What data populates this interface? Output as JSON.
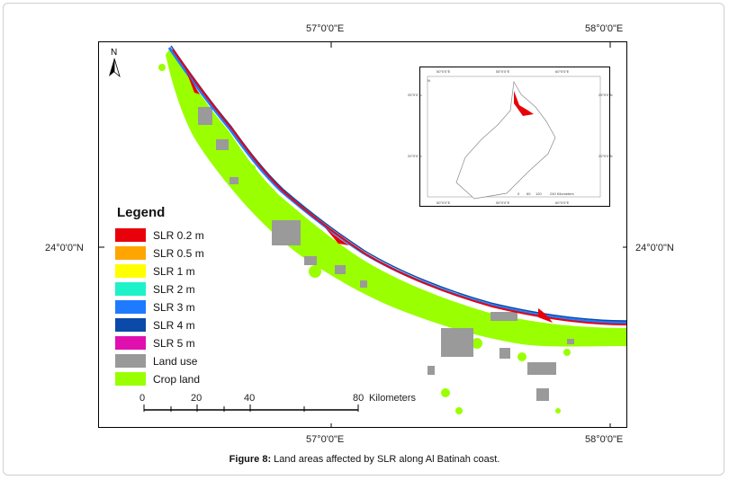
{
  "map": {
    "lon_labels": {
      "top_left": "57°0'0\"E",
      "top_right": "58°0'0\"E",
      "bottom_left": "57°0'0\"E",
      "bottom_right": "58°0'0\"E"
    },
    "lat_labels": {
      "left": "24°0'0\"N",
      "right": "24°0'0\"N"
    },
    "north_arrow": "N"
  },
  "legend": {
    "title": "Legend",
    "items": [
      {
        "label": "SLR 0.2 m",
        "color": "#e8000b"
      },
      {
        "label": "SLR 0.5 m",
        "color": "#ffa500"
      },
      {
        "label": "SLR 1 m",
        "color": "#ffff00"
      },
      {
        "label": "SLR 2 m",
        "color": "#1ef2c8"
      },
      {
        "label": "SLR 3 m",
        "color": "#1e7bff"
      },
      {
        "label": "SLR 4 m",
        "color": "#0b4aa8"
      },
      {
        "label": "SLR 5 m",
        "color": "#e010b0"
      },
      {
        "label": "Land use",
        "color": "#999999"
      },
      {
        "label": "Crop land",
        "color": "#9aff00"
      }
    ]
  },
  "scale": {
    "ticks": [
      "0",
      "20",
      "40",
      "80"
    ],
    "unit": "Kilometers"
  },
  "inset": {
    "top_labels": [
      "50°0'0\"E",
      "55°0'0\"E",
      "60°0'0\"E"
    ],
    "bottom_labels": [
      "50°0'0\"E",
      "55°0'0\"E",
      "60°0'0\"E"
    ],
    "left_labels": [
      "25°0'0\"N",
      "20°0'0\"N"
    ],
    "right_labels": [
      "25°0'0\"N",
      "20°0'0\"N"
    ],
    "scale_ticks": [
      "0",
      "60",
      "120",
      "240 Kilometers"
    ],
    "north": "N"
  },
  "caption": {
    "label": "Figure 8:",
    "text": " Land areas affected by SLR along Al Batinah coast."
  }
}
